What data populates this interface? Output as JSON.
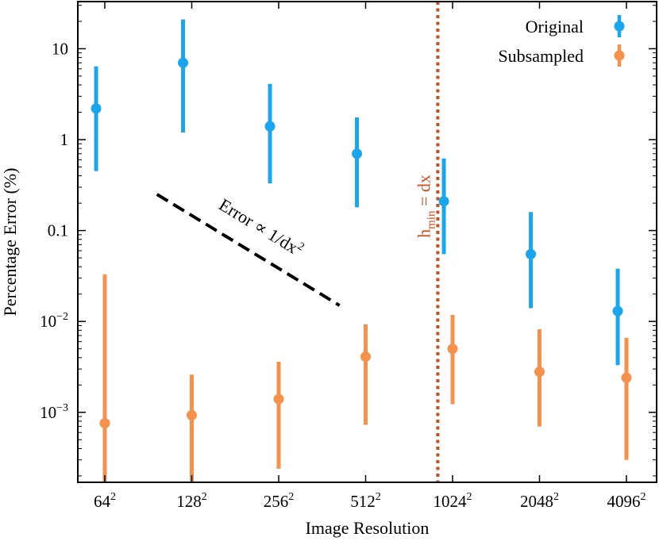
{
  "chart_data": {
    "type": "scatter",
    "subtype": "errorbar",
    "title": "",
    "xlabel": "Image Resolution",
    "ylabel": "Percentage Error (%)",
    "yscale": "log",
    "ylim": [
      0.00017,
      33
    ],
    "categories": [
      {
        "base": "64",
        "sup": "2"
      },
      {
        "base": "128",
        "sup": "2"
      },
      {
        "base": "256",
        "sup": "2"
      },
      {
        "base": "512",
        "sup": "2"
      },
      {
        "base": "1024",
        "sup": "2"
      },
      {
        "base": "2048",
        "sup": "2"
      },
      {
        "base": "4096",
        "sup": "2"
      }
    ],
    "y_ticks": [
      {
        "value": 10,
        "base": "10",
        "sup": ""
      },
      {
        "value": 1,
        "base": "1",
        "sup": ""
      },
      {
        "value": 0.1,
        "base": "0.1",
        "sup": ""
      },
      {
        "value": 0.01,
        "base": "10",
        "sup": "−2"
      },
      {
        "value": 0.001,
        "base": "10",
        "sup": "−3"
      }
    ],
    "series": [
      {
        "name": "Original",
        "color": "#1AA6EE",
        "x_offset": -0.1,
        "values": [
          2.2,
          7.0,
          1.4,
          0.7,
          0.21,
          0.055,
          0.013
        ],
        "err_low": [
          0.45,
          1.2,
          0.33,
          0.18,
          0.055,
          0.014,
          0.0033
        ],
        "err_high": [
          6.4,
          21,
          4.1,
          1.75,
          0.62,
          0.16,
          0.038
        ]
      },
      {
        "name": "Subsampled",
        "color": "#F5914A",
        "x_offset": 0.0,
        "values": [
          0.00076,
          0.00093,
          0.0014,
          0.0041,
          0.005,
          0.0028,
          0.0024
        ],
        "err_low": [
          0.00017,
          0.00017,
          0.00024,
          0.00073,
          0.00123,
          0.0007,
          0.0003
        ],
        "err_high": [
          0.033,
          0.0026,
          0.0036,
          0.0093,
          0.0118,
          0.0082,
          0.0066
        ]
      }
    ],
    "reference_line": {
      "label": "Error ∝ 1/dx",
      "label_sup": "2",
      "x_start": 0.6,
      "y_start": 0.25,
      "x_end": 2.7,
      "y_end": 0.015,
      "color": "#000000"
    },
    "vertical_line": {
      "x": 3.83,
      "label_main": "h",
      "label_sub": "min",
      "label_rest": " = dx",
      "color": "#C84E1E"
    },
    "legend": {
      "position": "top-right",
      "entries": [
        "Original",
        "Subsampled"
      ]
    }
  }
}
